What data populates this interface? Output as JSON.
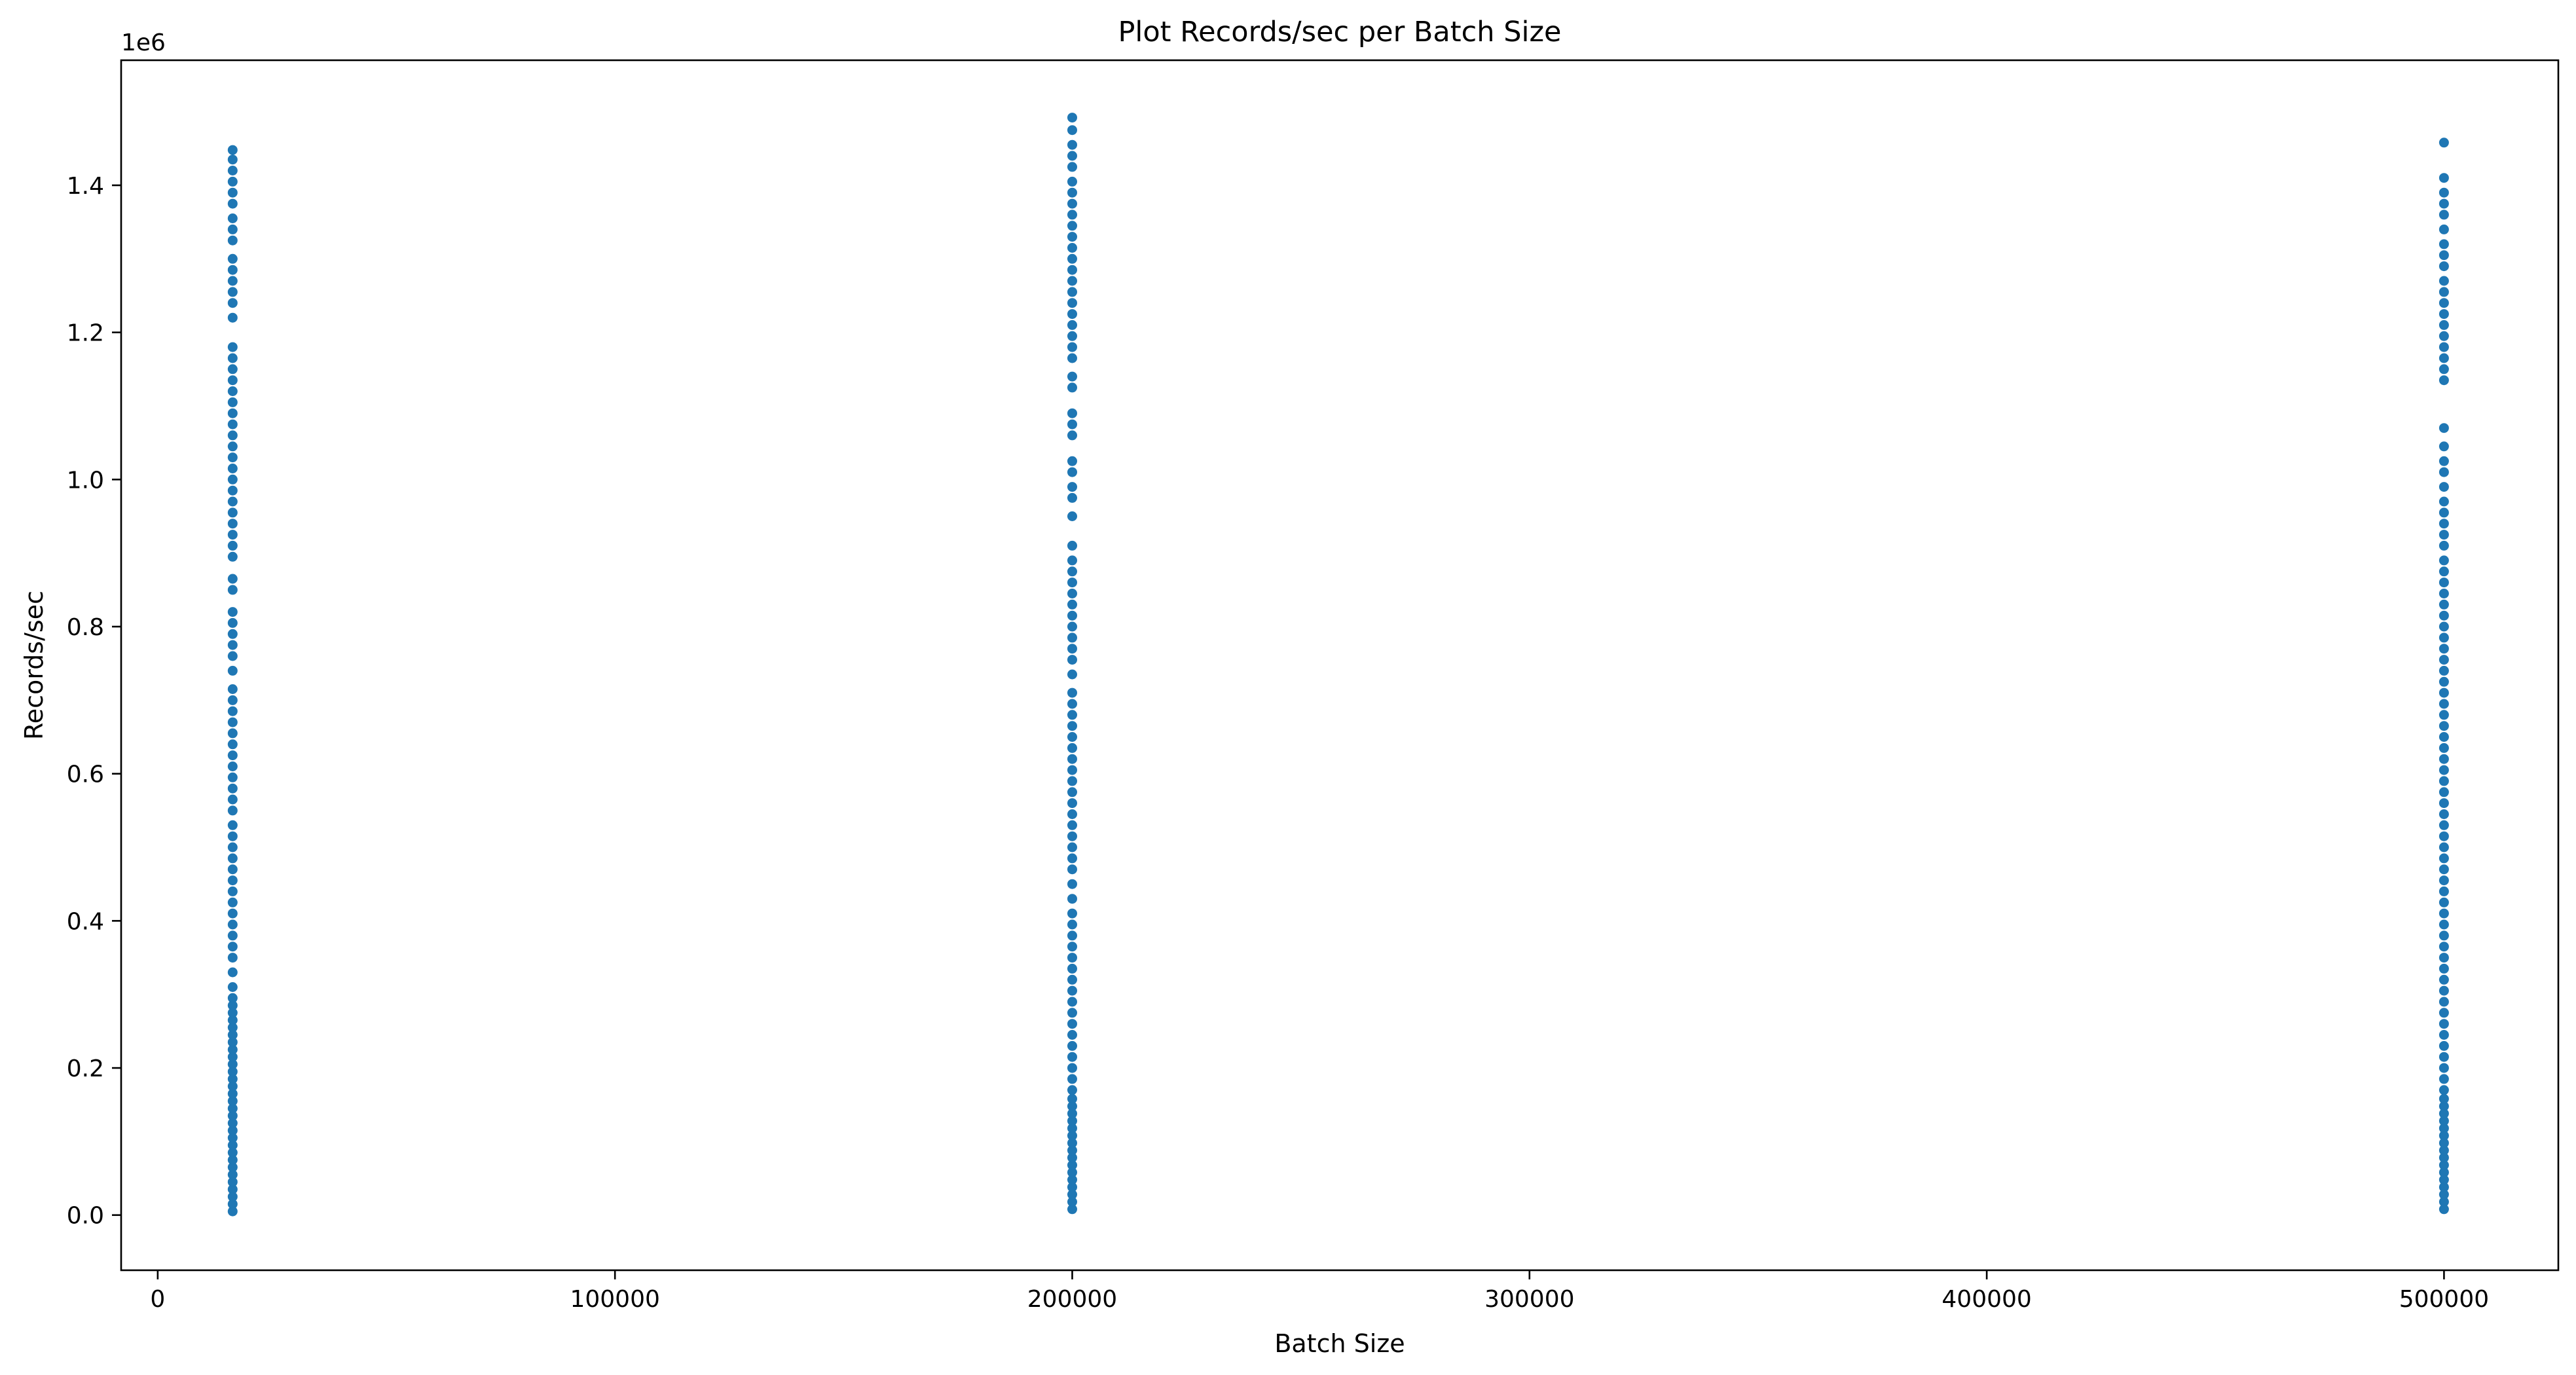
{
  "chart_data": {
    "type": "scatter",
    "title": "Plot Records/sec per Batch Size",
    "xlabel": "Batch Size",
    "ylabel": "Records/sec",
    "y_offset_label": "1e6",
    "xlim": [
      -8000,
      525000
    ],
    "ylim": [
      -75000,
      1570000
    ],
    "x_ticks": [
      0,
      100000,
      200000,
      300000,
      400000,
      500000
    ],
    "x_tick_labels": [
      "0",
      "100000",
      "200000",
      "300000",
      "400000",
      "500000"
    ],
    "y_ticks": [
      0,
      200000,
      400000,
      600000,
      800000,
      1000000,
      1200000,
      1400000
    ],
    "y_tick_labels": [
      "0.0",
      "0.2",
      "0.4",
      "0.6",
      "0.8",
      "1.0",
      "1.2",
      "1.4"
    ],
    "grid": false,
    "marker_color": "#1f77b4",
    "series": [
      {
        "x": 16384,
        "values": [
          5000,
          15000,
          25000,
          35000,
          45000,
          55000,
          65000,
          75000,
          85000,
          95000,
          105000,
          115000,
          125000,
          135000,
          145000,
          155000,
          165000,
          175000,
          185000,
          195000,
          205000,
          215000,
          225000,
          235000,
          245000,
          255000,
          265000,
          275000,
          285000,
          295000,
          310000,
          330000,
          350000,
          365000,
          380000,
          395000,
          410000,
          425000,
          440000,
          455000,
          470000,
          485000,
          500000,
          515000,
          530000,
          550000,
          565000,
          580000,
          595000,
          610000,
          625000,
          640000,
          655000,
          670000,
          685000,
          700000,
          715000,
          740000,
          760000,
          775000,
          790000,
          805000,
          820000,
          850000,
          865000,
          895000,
          910000,
          925000,
          940000,
          955000,
          970000,
          985000,
          1000000,
          1015000,
          1030000,
          1045000,
          1060000,
          1075000,
          1090000,
          1105000,
          1120000,
          1135000,
          1150000,
          1165000,
          1180000,
          1220000,
          1240000,
          1255000,
          1270000,
          1285000,
          1300000,
          1325000,
          1340000,
          1355000,
          1375000,
          1390000,
          1405000,
          1420000,
          1435000,
          1448000
        ]
      },
      {
        "x": 200000,
        "values": [
          8000,
          18000,
          28000,
          38000,
          48000,
          58000,
          68000,
          78000,
          88000,
          98000,
          108000,
          118000,
          128000,
          138000,
          148000,
          158000,
          170000,
          185000,
          200000,
          215000,
          230000,
          245000,
          260000,
          275000,
          290000,
          305000,
          320000,
          335000,
          350000,
          365000,
          380000,
          395000,
          410000,
          430000,
          450000,
          470000,
          485000,
          500000,
          515000,
          530000,
          545000,
          560000,
          575000,
          590000,
          605000,
          620000,
          635000,
          650000,
          665000,
          680000,
          695000,
          710000,
          735000,
          755000,
          770000,
          785000,
          800000,
          815000,
          830000,
          845000,
          860000,
          875000,
          890000,
          910000,
          950000,
          975000,
          990000,
          1010000,
          1025000,
          1060000,
          1075000,
          1090000,
          1125000,
          1140000,
          1165000,
          1180000,
          1195000,
          1210000,
          1225000,
          1240000,
          1255000,
          1270000,
          1285000,
          1300000,
          1315000,
          1330000,
          1345000,
          1360000,
          1375000,
          1390000,
          1405000,
          1425000,
          1440000,
          1455000,
          1475000,
          1492000
        ]
      },
      {
        "x": 500000,
        "values": [
          8000,
          18000,
          28000,
          38000,
          48000,
          58000,
          68000,
          78000,
          88000,
          98000,
          108000,
          118000,
          128000,
          138000,
          148000,
          158000,
          170000,
          185000,
          200000,
          215000,
          230000,
          245000,
          260000,
          275000,
          290000,
          305000,
          320000,
          335000,
          350000,
          365000,
          380000,
          395000,
          410000,
          425000,
          440000,
          455000,
          470000,
          485000,
          500000,
          515000,
          530000,
          545000,
          560000,
          575000,
          590000,
          605000,
          620000,
          635000,
          650000,
          665000,
          680000,
          695000,
          710000,
          725000,
          740000,
          755000,
          770000,
          785000,
          800000,
          815000,
          830000,
          845000,
          860000,
          875000,
          890000,
          910000,
          925000,
          940000,
          955000,
          970000,
          990000,
          1010000,
          1025000,
          1045000,
          1070000,
          1135000,
          1150000,
          1165000,
          1180000,
          1195000,
          1210000,
          1225000,
          1240000,
          1255000,
          1270000,
          1290000,
          1305000,
          1320000,
          1340000,
          1360000,
          1375000,
          1390000,
          1410000,
          1458000
        ]
      }
    ]
  }
}
